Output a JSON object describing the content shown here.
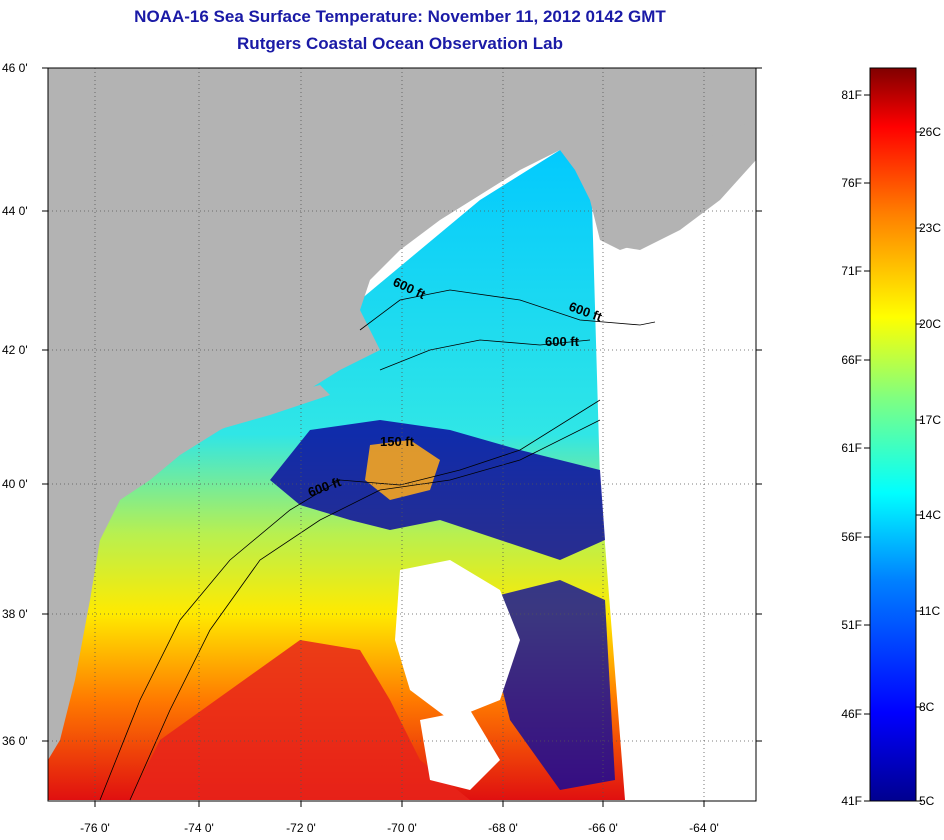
{
  "title": {
    "line1": "NOAA-16 Sea Surface Temperature:  November 11, 2012 0142 GMT",
    "line2": "Rutgers Coastal Ocean Observation Lab"
  },
  "map": {
    "lat_labels": [
      "46 0'",
      "44 0'",
      "42 0'",
      "40 0'",
      "38 0'",
      "36 0'"
    ],
    "lon_labels": [
      "-76 0'",
      "-74 0'",
      "-72 0'",
      "-70 0'",
      "-68 0'",
      "-66 0'",
      "-64 0'"
    ],
    "contour_labels": [
      "600 ft",
      "600 ft",
      "600 ft",
      "150 ft",
      "600 ft"
    ],
    "colors": {
      "land": "#b3b3b3",
      "no_data": "#ffffff",
      "grid": "#000000"
    }
  },
  "colorbar": {
    "fahrenheit_labels": [
      "81F",
      "76F",
      "71F",
      "66F",
      "61F",
      "56F",
      "51F",
      "46F",
      "41F"
    ],
    "celsius_labels": [
      "26C",
      "23C",
      "20C",
      "17C",
      "14C",
      "11C",
      "8C",
      "5C"
    ],
    "colors": [
      "#00008f",
      "#0000ff",
      "#0080ff",
      "#00ffff",
      "#80ff80",
      "#ffff00",
      "#ff8000",
      "#ff0000",
      "#800000"
    ]
  }
}
